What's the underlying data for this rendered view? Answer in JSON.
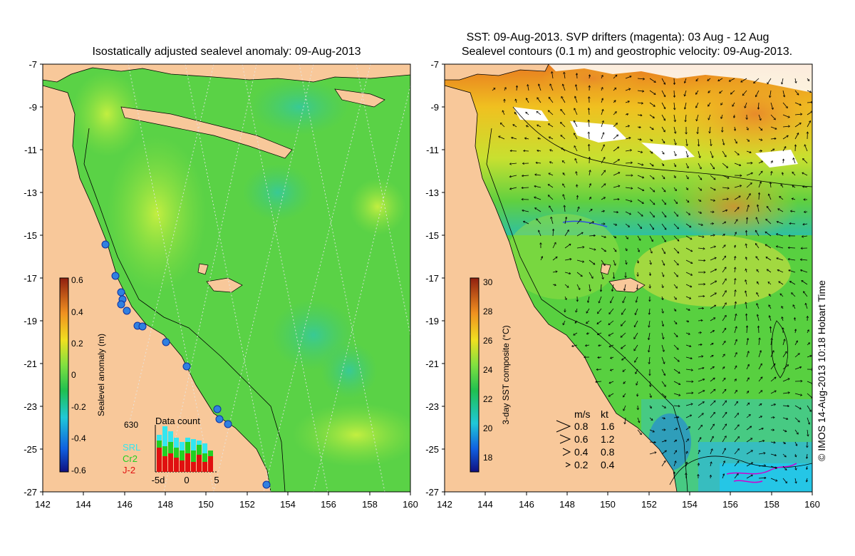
{
  "left_panel": {
    "title": "Isostatically adjusted sealevel anomaly: 09-Aug-2013",
    "y_ticks": [
      "-7",
      "-9",
      "-11",
      "-13",
      "-15",
      "-17",
      "-19",
      "-21",
      "-23",
      "-25",
      "-27"
    ],
    "x_ticks": [
      "142",
      "144",
      "146",
      "148",
      "150",
      "152",
      "154",
      "156",
      "158",
      "160"
    ],
    "colorbar": {
      "label": "Sealevel anomaly (m)",
      "ticks": [
        "0.6",
        "0.4",
        "0.2",
        "0",
        "-0.2",
        "-0.4",
        "-0.6"
      ]
    },
    "data_count": {
      "title": "Data count",
      "max_label": "630",
      "x_labels": [
        "-5d",
        "0",
        "5"
      ],
      "legend": [
        {
          "name": "SRL",
          "color": "#33e6f0"
        },
        {
          "name": "Cr2",
          "color": "#22d022"
        },
        {
          "name": "J-2",
          "color": "#e01010"
        }
      ]
    }
  },
  "right_panel": {
    "title_line1": "SST: 09-Aug-2013. SVP drifters (magenta): 03 Aug - 12 Aug",
    "title_line2": "Sealevel contours (0.1 m) and geostrophic velocity: 09-Aug-2013.",
    "y_ticks": [
      "-7",
      "-9",
      "-11",
      "-13",
      "-15",
      "-17",
      "-19",
      "-21",
      "-23",
      "-25",
      "-27"
    ],
    "x_ticks": [
      "142",
      "144",
      "146",
      "148",
      "150",
      "152",
      "154",
      "156",
      "158",
      "160"
    ],
    "colorbar": {
      "label": "3-day SST composite (°C)",
      "ticks": [
        "30",
        "28",
        "26",
        "24",
        "22",
        "20",
        "18"
      ]
    },
    "velocity_legend": {
      "header_ms": "m/s",
      "header_kt": "kt",
      "rows": [
        {
          "ms": "0.8",
          "kt": "1.6"
        },
        {
          "ms": "0.6",
          "kt": "1.2"
        },
        {
          "ms": "0.4",
          "kt": "0.8"
        },
        {
          "ms": "0.2",
          "kt": "0.4"
        }
      ]
    }
  },
  "credit": "© IMOS 14-Aug-2013 10:18 Hobart Time",
  "colors": {
    "land": "#f8c89a",
    "ocean_green": "#4cd64c",
    "ocean_light": "#8cea44",
    "warm_orange": "#e88a2a",
    "cool_cyan": "#30c8c0",
    "magenta": "#d000d0"
  }
}
